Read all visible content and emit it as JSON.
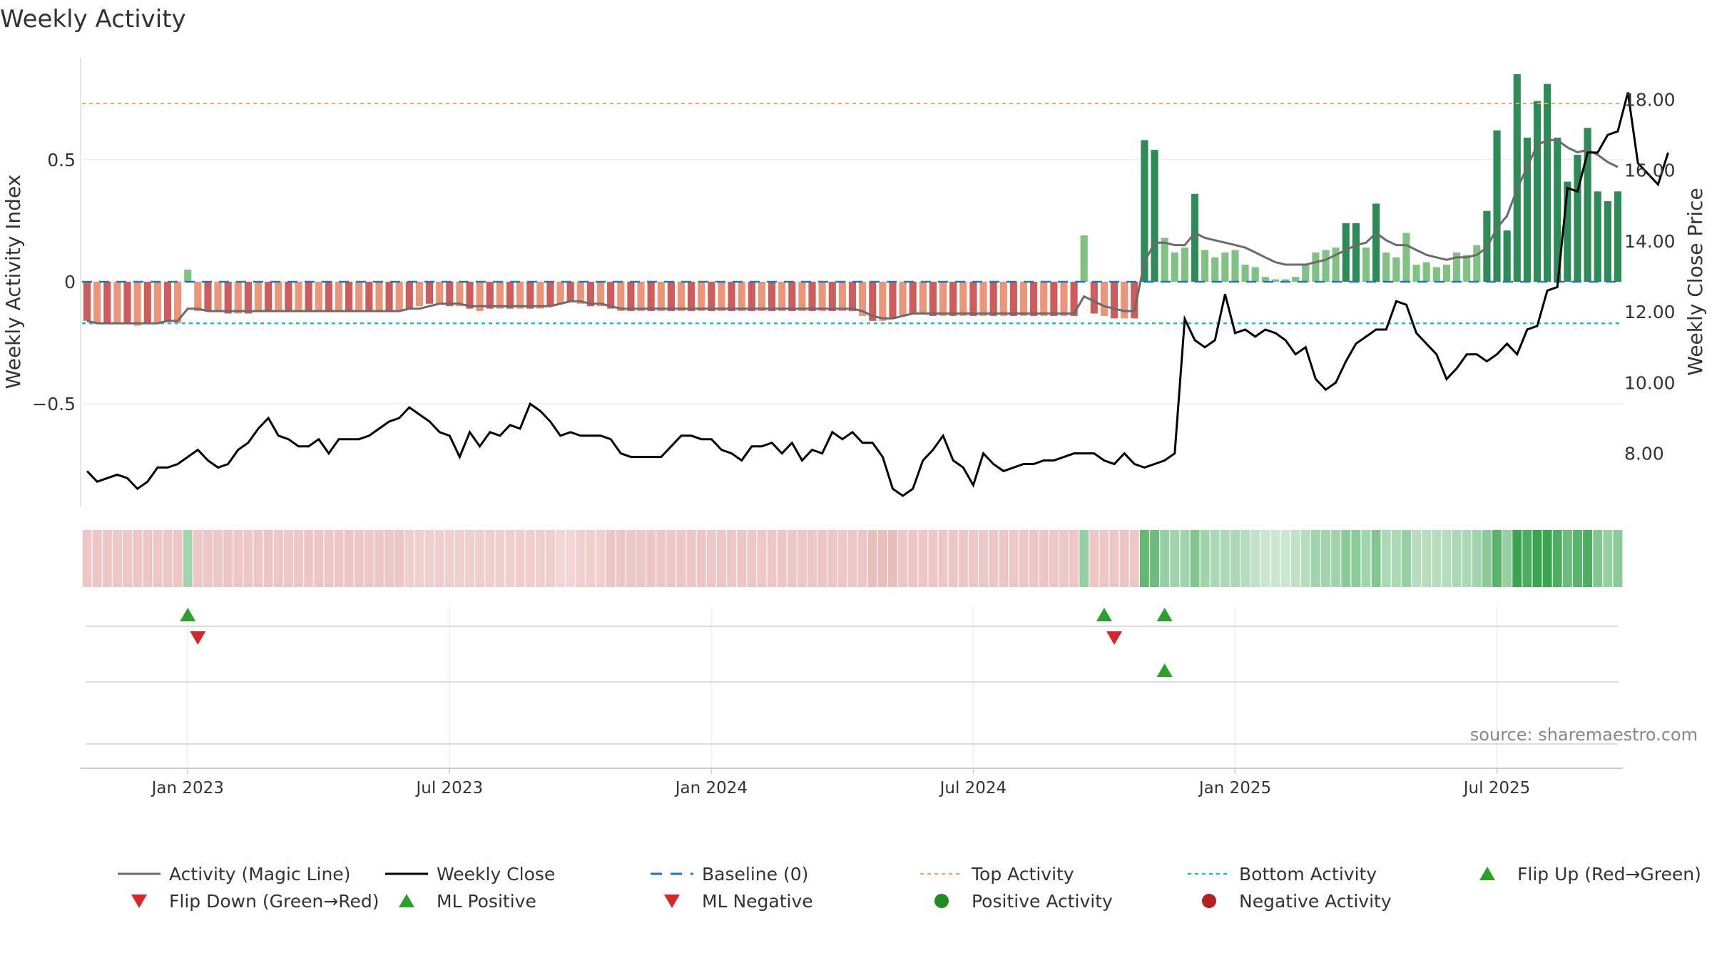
{
  "chart_data": {
    "type": "bar",
    "title": "Weekly Activity",
    "source": "source: sharemaestro.com",
    "ylabel_left": "Weekly Activity Index",
    "ylabel_right": "Weekly Close Price",
    "left_ticks": [
      {
        "v": 0.5,
        "label": "0.5"
      },
      {
        "v": 0,
        "label": "0"
      },
      {
        "v": -0.5,
        "label": "−0.5"
      }
    ],
    "right_ticks": [
      {
        "v": 18,
        "label": "18.00"
      },
      {
        "v": 16,
        "label": "16.00"
      },
      {
        "v": 14,
        "label": "14.00"
      },
      {
        "v": 12,
        "label": "12.00"
      },
      {
        "v": 10,
        "label": "10.00"
      },
      {
        "v": 8,
        "label": "8.00"
      }
    ],
    "x_ticks": [
      "Jan 2023",
      "Jul 2023",
      "Jan 2024",
      "Jul 2024",
      "Jan 2025",
      "Jul 2025"
    ],
    "x_tick_weeks": [
      10,
      36,
      62,
      88,
      114,
      140
    ],
    "ylim_left": [
      -0.92,
      0.92
    ],
    "ylim_right": [
      6.5,
      19.2
    ],
    "top_activity": 0.73,
    "bottom_activity": -0.17,
    "baseline": 0,
    "activity": [
      -0.16,
      -0.17,
      -0.17,
      -0.17,
      -0.17,
      -0.18,
      -0.17,
      -0.17,
      -0.16,
      -0.17,
      0.05,
      -0.12,
      -0.12,
      -0.12,
      -0.13,
      -0.13,
      -0.13,
      -0.12,
      -0.12,
      -0.12,
      -0.12,
      -0.12,
      -0.12,
      -0.12,
      -0.12,
      -0.12,
      -0.12,
      -0.12,
      -0.12,
      -0.12,
      -0.12,
      -0.12,
      -0.11,
      -0.1,
      -0.09,
      -0.09,
      -0.1,
      -0.1,
      -0.11,
      -0.12,
      -0.11,
      -0.11,
      -0.11,
      -0.11,
      -0.11,
      -0.11,
      -0.1,
      -0.09,
      -0.08,
      -0.09,
      -0.1,
      -0.1,
      -0.11,
      -0.12,
      -0.12,
      -0.12,
      -0.12,
      -0.12,
      -0.12,
      -0.12,
      -0.12,
      -0.12,
      -0.12,
      -0.12,
      -0.12,
      -0.12,
      -0.12,
      -0.12,
      -0.12,
      -0.12,
      -0.12,
      -0.12,
      -0.12,
      -0.12,
      -0.12,
      -0.12,
      -0.12,
      -0.14,
      -0.16,
      -0.16,
      -0.15,
      -0.14,
      -0.13,
      -0.13,
      -0.14,
      -0.14,
      -0.14,
      -0.14,
      -0.14,
      -0.14,
      -0.14,
      -0.14,
      -0.14,
      -0.14,
      -0.14,
      -0.14,
      -0.14,
      -0.14,
      -0.14,
      0.19,
      -0.13,
      -0.14,
      -0.15,
      -0.15,
      -0.15,
      0.58,
      0.54,
      0.18,
      0.12,
      0.14,
      0.36,
      0.13,
      0.1,
      0.12,
      0.13,
      0.07,
      0.06,
      0.02,
      0.01,
      0.01,
      0.02,
      0.07,
      0.12,
      0.13,
      0.14,
      0.24,
      0.24,
      0.14,
      0.32,
      0.12,
      0.1,
      0.2,
      0.07,
      0.08,
      0.06,
      0.07,
      0.12,
      0.11,
      0.15,
      0.29,
      0.62,
      0.21,
      0.85,
      0.59,
      0.74,
      0.81,
      0.59,
      0.41,
      0.52,
      0.63,
      0.37,
      0.33,
      0.37
    ],
    "magic_line": [
      -0.16,
      -0.17,
      -0.17,
      -0.17,
      -0.17,
      -0.17,
      -0.17,
      -0.17,
      -0.16,
      -0.16,
      -0.11,
      -0.11,
      -0.12,
      -0.12,
      -0.12,
      -0.12,
      -0.12,
      -0.12,
      -0.12,
      -0.12,
      -0.12,
      -0.12,
      -0.12,
      -0.12,
      -0.12,
      -0.12,
      -0.12,
      -0.12,
      -0.12,
      -0.12,
      -0.12,
      -0.12,
      -0.11,
      -0.11,
      -0.1,
      -0.09,
      -0.09,
      -0.09,
      -0.1,
      -0.1,
      -0.1,
      -0.1,
      -0.1,
      -0.1,
      -0.1,
      -0.1,
      -0.1,
      -0.09,
      -0.08,
      -0.08,
      -0.09,
      -0.09,
      -0.1,
      -0.11,
      -0.11,
      -0.11,
      -0.11,
      -0.11,
      -0.11,
      -0.11,
      -0.11,
      -0.11,
      -0.11,
      -0.11,
      -0.11,
      -0.11,
      -0.11,
      -0.11,
      -0.11,
      -0.11,
      -0.11,
      -0.11,
      -0.11,
      -0.11,
      -0.11,
      -0.11,
      -0.11,
      -0.12,
      -0.14,
      -0.15,
      -0.15,
      -0.14,
      -0.13,
      -0.13,
      -0.13,
      -0.13,
      -0.13,
      -0.13,
      -0.13,
      -0.13,
      -0.13,
      -0.13,
      -0.13,
      -0.13,
      -0.13,
      -0.13,
      -0.13,
      -0.13,
      -0.13,
      -0.06,
      -0.08,
      -0.1,
      -0.11,
      -0.12,
      -0.12,
      0.08,
      0.16,
      0.16,
      0.15,
      0.15,
      0.2,
      0.18,
      0.17,
      0.16,
      0.15,
      0.14,
      0.12,
      0.1,
      0.08,
      0.07,
      0.07,
      0.07,
      0.08,
      0.09,
      0.11,
      0.13,
      0.15,
      0.16,
      0.2,
      0.17,
      0.15,
      0.15,
      0.13,
      0.11,
      0.1,
      0.09,
      0.1,
      0.1,
      0.11,
      0.14,
      0.22,
      0.27,
      0.38,
      0.47,
      0.56,
      0.58,
      0.58,
      0.55,
      0.53,
      0.54,
      0.52,
      0.49,
      0.47
    ],
    "weekly_close": [
      7.5,
      7.2,
      7.3,
      7.4,
      7.3,
      7.0,
      7.2,
      7.6,
      7.6,
      7.7,
      7.9,
      8.1,
      7.8,
      7.6,
      7.7,
      8.1,
      8.3,
      8.7,
      9.0,
      8.5,
      8.4,
      8.2,
      8.2,
      8.4,
      8.0,
      8.4,
      8.4,
      8.4,
      8.5,
      8.7,
      8.9,
      9.0,
      9.3,
      9.1,
      8.9,
      8.6,
      8.5,
      7.9,
      8.6,
      8.2,
      8.6,
      8.5,
      8.8,
      8.7,
      9.4,
      9.2,
      8.9,
      8.5,
      8.6,
      8.5,
      8.5,
      8.5,
      8.4,
      8.0,
      7.9,
      7.9,
      7.9,
      7.9,
      8.2,
      8.5,
      8.5,
      8.4,
      8.4,
      8.1,
      8.0,
      7.8,
      8.2,
      8.2,
      8.3,
      8.0,
      8.3,
      7.8,
      8.1,
      8.0,
      8.6,
      8.4,
      8.6,
      8.3,
      8.3,
      7.9,
      7.0,
      6.8,
      7.0,
      7.8,
      8.1,
      8.5,
      7.8,
      7.6,
      7.1,
      8.0,
      7.7,
      7.5,
      7.6,
      7.7,
      7.7,
      7.8,
      7.8,
      7.9,
      8.0,
      8.0,
      8.0,
      7.8,
      7.7,
      8.0,
      7.7,
      7.6,
      7.7,
      7.8,
      8.0,
      11.8,
      11.2,
      11.0,
      11.2,
      12.5,
      11.4,
      11.5,
      11.3,
      11.5,
      11.4,
      11.2,
      10.8,
      11.0,
      10.1,
      9.8,
      10.0,
      10.6,
      11.1,
      11.3,
      11.5,
      11.5,
      12.3,
      12.2,
      11.4,
      11.1,
      10.8,
      10.1,
      10.4,
      10.8,
      10.8,
      10.6,
      10.8,
      11.1,
      10.8,
      11.5,
      11.6,
      12.6,
      12.7,
      15.5,
      15.4,
      16.5,
      16.5,
      17.0,
      17.1,
      18.2,
      16.2,
      15.9,
      15.6,
      16.5
    ],
    "state_alpha": [
      0.35,
      0.35,
      0.35,
      0.35,
      0.35,
      0.35,
      0.35,
      0.35,
      0.35,
      0.35,
      0.45,
      0.35,
      0.35,
      0.35,
      0.35,
      0.35,
      0.35,
      0.35,
      0.35,
      0.35,
      0.35,
      0.35,
      0.35,
      0.35,
      0.35,
      0.35,
      0.35,
      0.35,
      0.35,
      0.35,
      0.35,
      0.35,
      0.3,
      0.3,
      0.3,
      0.3,
      0.3,
      0.3,
      0.3,
      0.3,
      0.3,
      0.3,
      0.3,
      0.3,
      0.3,
      0.3,
      0.3,
      0.25,
      0.25,
      0.3,
      0.3,
      0.3,
      0.35,
      0.35,
      0.35,
      0.35,
      0.35,
      0.35,
      0.35,
      0.35,
      0.35,
      0.35,
      0.35,
      0.35,
      0.35,
      0.35,
      0.35,
      0.35,
      0.35,
      0.35,
      0.35,
      0.35,
      0.35,
      0.35,
      0.35,
      0.35,
      0.35,
      0.35,
      0.4,
      0.4,
      0.4,
      0.35,
      0.35,
      0.35,
      0.35,
      0.35,
      0.35,
      0.35,
      0.35,
      0.35,
      0.35,
      0.35,
      0.35,
      0.35,
      0.35,
      0.35,
      0.35,
      0.35,
      0.35,
      0.5,
      0.35,
      0.35,
      0.35,
      0.35,
      0.35,
      0.75,
      0.7,
      0.5,
      0.45,
      0.45,
      0.6,
      0.45,
      0.4,
      0.4,
      0.4,
      0.35,
      0.3,
      0.25,
      0.25,
      0.25,
      0.3,
      0.35,
      0.45,
      0.45,
      0.45,
      0.55,
      0.55,
      0.45,
      0.6,
      0.4,
      0.4,
      0.5,
      0.35,
      0.35,
      0.35,
      0.35,
      0.4,
      0.4,
      0.45,
      0.55,
      0.8,
      0.5,
      0.95,
      0.85,
      0.95,
      0.95,
      0.85,
      0.7,
      0.8,
      0.85,
      0.6,
      0.5,
      0.55
    ],
    "flip_up": [
      10,
      101,
      107
    ],
    "flip_down": [
      11,
      102
    ],
    "ml_positive": [
      107
    ],
    "ml_negative": [],
    "legend": [
      {
        "label": "Activity (Magic Line)",
        "kind": "line",
        "color": "#6b6b6b"
      },
      {
        "label": "Weekly Close",
        "kind": "line",
        "color": "#000000"
      },
      {
        "label": "Baseline (0)",
        "kind": "dash",
        "color": "#1f77b4"
      },
      {
        "label": "Top Activity",
        "kind": "dot",
        "color": "#f4a460"
      },
      {
        "label": "Bottom Activity",
        "kind": "dot",
        "color": "#17becf"
      },
      {
        "label": "Flip Up (Red→Green)",
        "kind": "tri-up",
        "color": "#2ca02c"
      },
      {
        "label": "Flip Down (Green→Red)",
        "kind": "tri-down",
        "color": "#d62728"
      },
      {
        "label": "ML Positive",
        "kind": "tri-up",
        "color": "#2ca02c"
      },
      {
        "label": "ML Negative",
        "kind": "tri-down",
        "color": "#d62728"
      },
      {
        "label": "Positive Activity",
        "kind": "circle",
        "color": "#228b22"
      },
      {
        "label": "Negative Activity",
        "kind": "circle",
        "color": "#b22222"
      }
    ]
  }
}
